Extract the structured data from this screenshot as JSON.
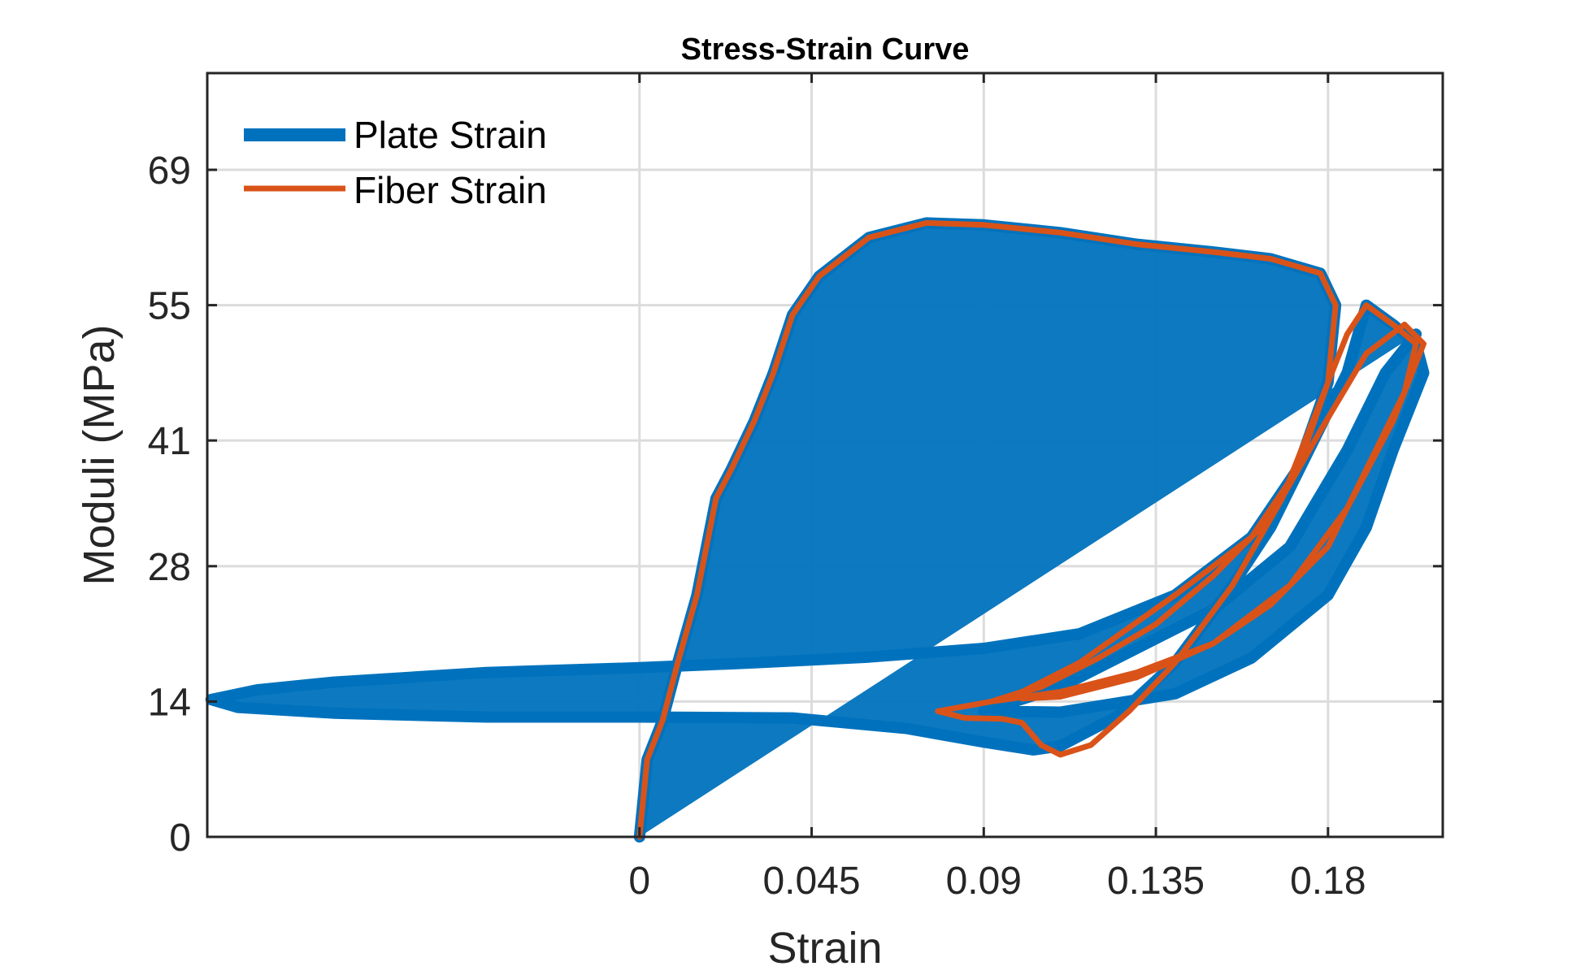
{
  "chart_data": {
    "type": "line",
    "title": "Stress-Strain Curve",
    "xlabel": "Strain",
    "ylabel": "Moduli (MPa)",
    "xlim": [
      -0.113,
      0.21
    ],
    "ylim": [
      0,
      79
    ],
    "xticks": [
      0,
      0.045,
      0.09,
      0.135,
      0.18
    ],
    "xtick_labels": [
      "0",
      "0.045",
      "0.09",
      "0.135",
      "0.18"
    ],
    "yticks": [
      0,
      14,
      28,
      41,
      55,
      69
    ],
    "ytick_labels": [
      "0",
      "14",
      "28",
      "41",
      "55",
      "69"
    ],
    "grid": true,
    "legend_position": "top-left",
    "series": [
      {
        "name": "Plate Strain",
        "color": "#0072BD",
        "line_width": "thick",
        "points": [
          [
            0.0,
            0.0
          ],
          [
            0.002,
            8.0
          ],
          [
            0.006,
            12.0
          ],
          [
            0.01,
            18.0
          ],
          [
            0.015,
            25.0
          ],
          [
            0.02,
            35.0
          ],
          [
            0.024,
            38.0
          ],
          [
            0.03,
            43.0
          ],
          [
            0.035,
            48.0
          ],
          [
            0.04,
            54.0
          ],
          [
            0.047,
            58.0
          ],
          [
            0.06,
            62.0
          ],
          [
            0.075,
            63.5
          ],
          [
            0.09,
            63.3
          ],
          [
            0.11,
            62.5
          ],
          [
            0.13,
            61.3
          ],
          [
            0.15,
            60.5
          ],
          [
            0.165,
            59.8
          ],
          [
            0.178,
            58.3
          ],
          [
            0.182,
            55.0
          ],
          [
            0.18,
            47.0
          ],
          [
            0.172,
            38.0
          ],
          [
            0.16,
            31.0
          ],
          [
            0.14,
            25.0
          ],
          [
            0.115,
            21.0
          ],
          [
            0.09,
            19.5
          ],
          [
            0.06,
            18.6
          ],
          [
            0.03,
            18.0
          ],
          [
            0.0,
            17.5
          ],
          [
            -0.04,
            17.0
          ],
          [
            -0.08,
            16.0
          ],
          [
            -0.1,
            15.2
          ],
          [
            -0.112,
            14.2
          ],
          [
            -0.105,
            13.4
          ],
          [
            -0.08,
            12.8
          ],
          [
            -0.04,
            12.4
          ],
          [
            0.0,
            12.4
          ],
          [
            0.04,
            12.3
          ],
          [
            0.07,
            11.2
          ],
          [
            0.09,
            9.8
          ],
          [
            0.103,
            9.0
          ],
          [
            0.11,
            9.4
          ],
          [
            0.125,
            12.5
          ],
          [
            0.14,
            18.0
          ],
          [
            0.155,
            26.0
          ],
          [
            0.165,
            32.0
          ],
          [
            0.175,
            40.0
          ],
          [
            0.185,
            48.0
          ],
          [
            0.19,
            55.0
          ],
          [
            0.197,
            53.0
          ],
          [
            0.203,
            51.0
          ],
          [
            0.205,
            48.0
          ],
          [
            0.197,
            40.0
          ],
          [
            0.19,
            32.0
          ],
          [
            0.18,
            25.0
          ],
          [
            0.16,
            18.5
          ],
          [
            0.14,
            14.8
          ],
          [
            0.11,
            12.9
          ],
          [
            0.09,
            13.0
          ],
          [
            0.11,
            15.5
          ],
          [
            0.13,
            19.5
          ],
          [
            0.15,
            23.5
          ],
          [
            0.17,
            30.0
          ],
          [
            0.185,
            40.0
          ],
          [
            0.195,
            48.0
          ],
          [
            0.203,
            52.0
          ]
        ]
      },
      {
        "name": "Fiber Strain",
        "color": "#D95319",
        "line_width": "normal",
        "points": [
          [
            0.0,
            0.0
          ],
          [
            0.002,
            8.0
          ],
          [
            0.006,
            12.0
          ],
          [
            0.01,
            18.0
          ],
          [
            0.015,
            25.0
          ],
          [
            0.02,
            35.0
          ],
          [
            0.024,
            38.0
          ],
          [
            0.03,
            43.0
          ],
          [
            0.035,
            48.0
          ],
          [
            0.04,
            54.0
          ],
          [
            0.047,
            58.0
          ],
          [
            0.06,
            62.0
          ],
          [
            0.075,
            63.5
          ],
          [
            0.09,
            63.3
          ],
          [
            0.11,
            62.5
          ],
          [
            0.13,
            61.3
          ],
          [
            0.15,
            60.5
          ],
          [
            0.165,
            59.8
          ],
          [
            0.178,
            58.3
          ],
          [
            0.182,
            55.0
          ],
          [
            0.18,
            47.0
          ],
          [
            0.172,
            38.0
          ],
          [
            0.16,
            31.0
          ],
          [
            0.14,
            25.0
          ],
          [
            0.115,
            18.0
          ],
          [
            0.1,
            15.0
          ],
          [
            0.092,
            14.0
          ],
          [
            0.078,
            13.0
          ],
          [
            0.085,
            12.3
          ],
          [
            0.095,
            12.2
          ],
          [
            0.1,
            11.8
          ],
          [
            0.105,
            9.5
          ],
          [
            0.11,
            8.5
          ],
          [
            0.118,
            9.5
          ],
          [
            0.128,
            13.0
          ],
          [
            0.14,
            18.0
          ],
          [
            0.155,
            26.0
          ],
          [
            0.168,
            35.0
          ],
          [
            0.178,
            45.0
          ],
          [
            0.185,
            52.0
          ],
          [
            0.19,
            55.0
          ],
          [
            0.197,
            53.0
          ],
          [
            0.203,
            51.0
          ],
          [
            0.2,
            46.0
          ],
          [
            0.19,
            38.0
          ],
          [
            0.18,
            30.0
          ],
          [
            0.165,
            24.0
          ],
          [
            0.15,
            20.0
          ],
          [
            0.13,
            17.0
          ],
          [
            0.11,
            15.0
          ],
          [
            0.092,
            14.0
          ],
          [
            0.105,
            15.5
          ],
          [
            0.12,
            18.5
          ],
          [
            0.135,
            22.0
          ],
          [
            0.15,
            27.0
          ],
          [
            0.165,
            33.0
          ],
          [
            0.178,
            42.0
          ],
          [
            0.19,
            50.0
          ],
          [
            0.2,
            53.0
          ],
          [
            0.205,
            51.0
          ],
          [
            0.197,
            43.0
          ],
          [
            0.185,
            34.0
          ],
          [
            0.17,
            26.0
          ],
          [
            0.15,
            20.0
          ],
          [
            0.13,
            16.5
          ],
          [
            0.11,
            14.5
          ],
          [
            0.1,
            14.3
          ]
        ]
      }
    ]
  }
}
